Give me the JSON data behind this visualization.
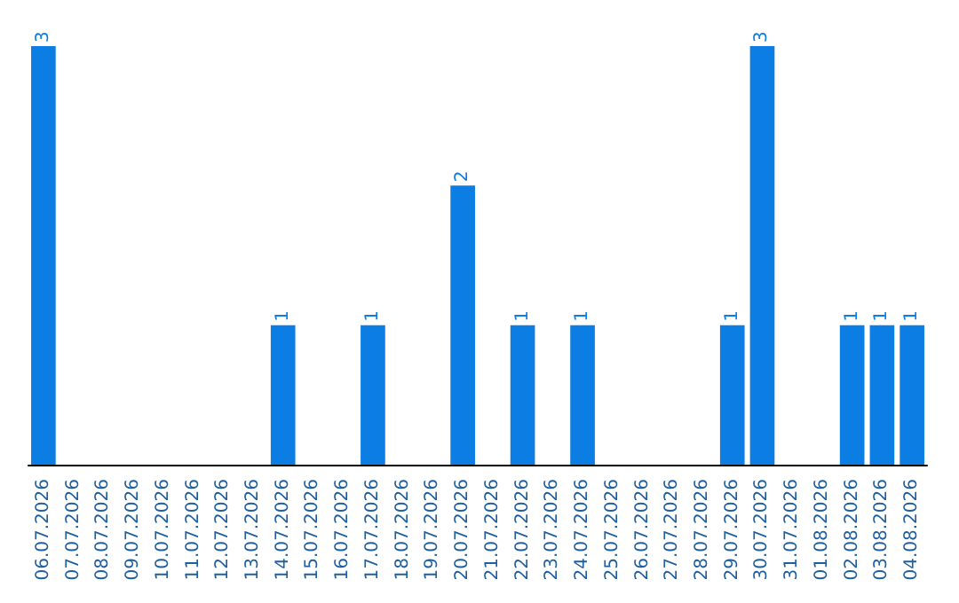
{
  "chart_data": {
    "type": "bar",
    "categories": [
      "06.07.2026",
      "07.07.2026",
      "08.07.2026",
      "09.07.2026",
      "10.07.2026",
      "11.07.2026",
      "12.07.2026",
      "13.07.2026",
      "14.07.2026",
      "15.07.2026",
      "16.07.2026",
      "17.07.2026",
      "18.07.2026",
      "19.07.2026",
      "20.07.2026",
      "21.07.2026",
      "22.07.2026",
      "23.07.2026",
      "24.07.2026",
      "25.07.2026",
      "26.07.2026",
      "27.07.2026",
      "28.07.2026",
      "29.07.2026",
      "30.07.2026",
      "31.07.2026",
      "01.08.2026",
      "02.08.2026",
      "03.08.2026",
      "04.08.2026"
    ],
    "values": [
      3,
      0,
      0,
      0,
      0,
      0,
      0,
      0,
      1,
      0,
      0,
      1,
      0,
      0,
      2,
      0,
      1,
      0,
      1,
      0,
      0,
      0,
      0,
      1,
      3,
      0,
      0,
      1,
      1,
      1
    ],
    "value_labels": [
      "3",
      null,
      null,
      null,
      null,
      null,
      null,
      null,
      "1",
      null,
      null,
      "1",
      null,
      null,
      "2",
      null,
      "1",
      null,
      "1",
      null,
      null,
      null,
      null,
      "1",
      "3",
      null,
      null,
      "1",
      "1",
      "1"
    ],
    "color": "#0b7de3"
  }
}
